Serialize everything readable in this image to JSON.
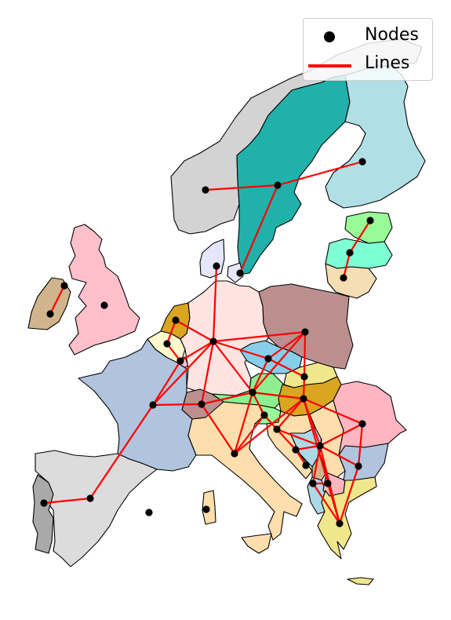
{
  "legend": {
    "nodes_label": "Nodes",
    "lines_label": "Lines",
    "node_color": "#000000",
    "line_color": "#ff0000"
  },
  "countries": [
    {
      "name": "norway",
      "fill": "#d3d3d3"
    },
    {
      "name": "sweden",
      "fill": "#20b2aa"
    },
    {
      "name": "finland",
      "fill": "#b0e0e6"
    },
    {
      "name": "estonia",
      "fill": "#98fb98"
    },
    {
      "name": "latvia",
      "fill": "#7fffd4"
    },
    {
      "name": "lithuania",
      "fill": "#f5deb3"
    },
    {
      "name": "denmark",
      "fill": "#e6e6fa"
    },
    {
      "name": "ireland",
      "fill": "#d2b48c"
    },
    {
      "name": "united-kingdom",
      "fill": "#ffc0cb"
    },
    {
      "name": "netherlands",
      "fill": "#daa520"
    },
    {
      "name": "belgium",
      "fill": "#fffacd"
    },
    {
      "name": "luxembourg",
      "fill": "#ffc0cb"
    },
    {
      "name": "germany",
      "fill": "#ffe4e1"
    },
    {
      "name": "poland",
      "fill": "#bc8f8f"
    },
    {
      "name": "czechia",
      "fill": "#87ceeb"
    },
    {
      "name": "slovakia",
      "fill": "#f0e68c"
    },
    {
      "name": "austria",
      "fill": "#90ee90"
    },
    {
      "name": "hungary",
      "fill": "#daa520"
    },
    {
      "name": "switzerland",
      "fill": "#bc8f8f"
    },
    {
      "name": "france",
      "fill": "#b0c4de"
    },
    {
      "name": "italy",
      "fill": "#ffdead"
    },
    {
      "name": "slovenia",
      "fill": "#98fb98"
    },
    {
      "name": "croatia",
      "fill": "#ffdead"
    },
    {
      "name": "bosnia",
      "fill": "#add8e6"
    },
    {
      "name": "serbia",
      "fill": "#ffdead"
    },
    {
      "name": "montenegro",
      "fill": "#d2b48c"
    },
    {
      "name": "albania",
      "fill": "#add8e6"
    },
    {
      "name": "north-macedonia",
      "fill": "#ffb6c1"
    },
    {
      "name": "romania",
      "fill": "#ffb6c1"
    },
    {
      "name": "bulgaria",
      "fill": "#b0c4de"
    },
    {
      "name": "greece",
      "fill": "#f0e68c"
    },
    {
      "name": "spain",
      "fill": "#dcdcdc"
    },
    {
      "name": "portugal",
      "fill": "#a9a9a9"
    },
    {
      "name": "sardinia",
      "fill": "#ffdead"
    },
    {
      "name": "sicily",
      "fill": "#ffdead"
    },
    {
      "name": "crete",
      "fill": "#f0e68c"
    }
  ]
}
